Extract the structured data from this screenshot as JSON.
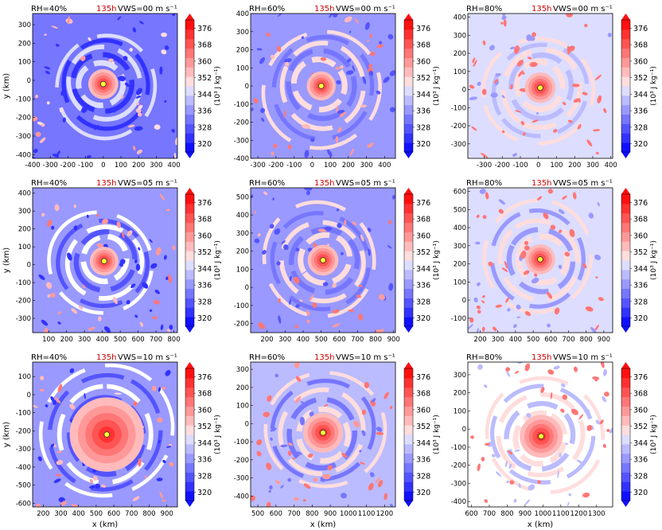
{
  "figure": {
    "xlabel": "x (km)",
    "ylabel": "y (km)",
    "cbar_label": "(10³ J kg⁻¹)",
    "cbar_ticks": [
      320,
      328,
      336,
      344,
      352,
      360,
      368,
      376
    ],
    "time_label": "135h",
    "colors": {
      "time": "#cc0000",
      "low": "#1010ff",
      "mid": "#ffffff",
      "high": "#ff1010",
      "center_marker": "#ffff33",
      "center_edge": "#333333"
    }
  },
  "chart_data": [
    {
      "type": "heatmap",
      "row": 0,
      "col": 0,
      "rh": "RH=40%",
      "vws": "VWS=00 m s⁻¹",
      "xlim": [
        -400,
        420
      ],
      "ylim": [
        -420,
        360
      ],
      "xticks": [
        -400,
        -300,
        -200,
        -100,
        0,
        100,
        200,
        300,
        400
      ],
      "yticks": [
        -400,
        -300,
        -200,
        -100,
        0,
        100,
        200,
        300
      ],
      "center": [
        0,
        -20
      ],
      "core_radius": 85,
      "ring_radius": 230,
      "bg": 0.2
    },
    {
      "type": "heatmap",
      "row": 0,
      "col": 1,
      "rh": "RH=60%",
      "vws": "VWS=00 m s⁻¹",
      "xlim": [
        -340,
        460
      ],
      "ylim": [
        -400,
        400
      ],
      "xticks": [
        -300,
        -200,
        -100,
        0,
        100,
        200,
        300,
        400
      ],
      "yticks": [
        -400,
        -300,
        -200,
        -100,
        0,
        100,
        200,
        300,
        400
      ],
      "center": [
        50,
        0
      ],
      "core_radius": 80,
      "ring_radius": 260,
      "bg": 0.3
    },
    {
      "type": "heatmap",
      "row": 0,
      "col": 2,
      "rh": "RH=80%",
      "vws": "VWS=00 m s⁻¹",
      "xlim": [
        -390,
        410
      ],
      "ylim": [
        -380,
        420
      ],
      "xticks": [
        -300,
        -200,
        -100,
        0,
        100,
        200,
        300,
        400
      ],
      "yticks": [
        -300,
        -200,
        -100,
        0,
        100,
        200,
        300,
        400
      ],
      "center": [
        10,
        10
      ],
      "core_radius": 85,
      "ring_radius": 240,
      "bg": 0.45
    },
    {
      "type": "heatmap",
      "row": 1,
      "col": 0,
      "rh": "RH=40%",
      "vws": "VWS=05 m s⁻¹",
      "xlim": [
        10,
        820
      ],
      "ylim": [
        -380,
        430
      ],
      "xticks": [
        100,
        200,
        300,
        400,
        500,
        600,
        700,
        800
      ],
      "yticks": [
        -300,
        -200,
        -100,
        0,
        100,
        200,
        300,
        400
      ],
      "center": [
        410,
        20
      ],
      "core_radius": 80,
      "ring_radius": 230,
      "bg": 0.25
    },
    {
      "type": "heatmap",
      "row": 1,
      "col": 1,
      "rh": "RH=60%",
      "vws": "VWS=05 m s⁻¹",
      "xlim": [
        110,
        910
      ],
      "ylim": [
        -250,
        550
      ],
      "xticks": [
        200,
        300,
        400,
        500,
        600,
        700,
        800,
        900
      ],
      "yticks": [
        -200,
        -100,
        0,
        100,
        200,
        300,
        400,
        500
      ],
      "center": [
        510,
        150
      ],
      "core_radius": 85,
      "ring_radius": 250,
      "bg": 0.3
    },
    {
      "type": "heatmap",
      "row": 1,
      "col": 2,
      "rh": "RH=80%",
      "vws": "VWS=05 m s⁻¹",
      "xlim": [
        130,
        950
      ],
      "ylim": [
        -180,
        620
      ],
      "xticks": [
        200,
        300,
        400,
        500,
        600,
        700,
        800,
        900
      ],
      "yticks": [
        -100,
        0,
        100,
        200,
        300,
        400,
        500,
        600
      ],
      "center": [
        540,
        225
      ],
      "core_radius": 85,
      "ring_radius": 250,
      "bg": 0.42
    },
    {
      "type": "heatmap",
      "row": 2,
      "col": 0,
      "rh": "RH=40%",
      "vws": "VWS=10 m s⁻¹",
      "xlim": [
        140,
        960
      ],
      "ylim": [
        -620,
        180
      ],
      "xticks": [
        200,
        300,
        400,
        500,
        600,
        700,
        800,
        900
      ],
      "yticks": [
        -600,
        -500,
        -400,
        -300,
        -200,
        -100,
        0,
        100
      ],
      "center": [
        560,
        -220
      ],
      "core_radius": 210,
      "ring_radius": 300,
      "bg": 0.25
    },
    {
      "type": "heatmap",
      "row": 2,
      "col": 1,
      "rh": "RH=60%",
      "vws": "VWS=10 m s⁻¹",
      "xlim": [
        460,
        1260
      ],
      "ylim": [
        -460,
        340
      ],
      "xticks": [
        500,
        600,
        700,
        800,
        900,
        1000,
        1100,
        1200
      ],
      "yticks": [
        -400,
        -300,
        -200,
        -100,
        0,
        100,
        200,
        300
      ],
      "center": [
        860,
        -50
      ],
      "core_radius": 110,
      "ring_radius": 260,
      "bg": 0.35
    },
    {
      "type": "heatmap",
      "row": 2,
      "col": 2,
      "rh": "RH=80%",
      "vws": "VWS=10 m s⁻¹",
      "xlim": [
        580,
        1390
      ],
      "ylim": [
        -430,
        370
      ],
      "xticks": [
        600,
        700,
        800,
        900,
        1000,
        1100,
        1200,
        1300
      ],
      "yticks": [
        -400,
        -300,
        -200,
        -100,
        0,
        100,
        200,
        300
      ],
      "center": [
        990,
        -40
      ],
      "core_radius": 120,
      "ring_radius": 260,
      "bg": 0.5
    }
  ]
}
